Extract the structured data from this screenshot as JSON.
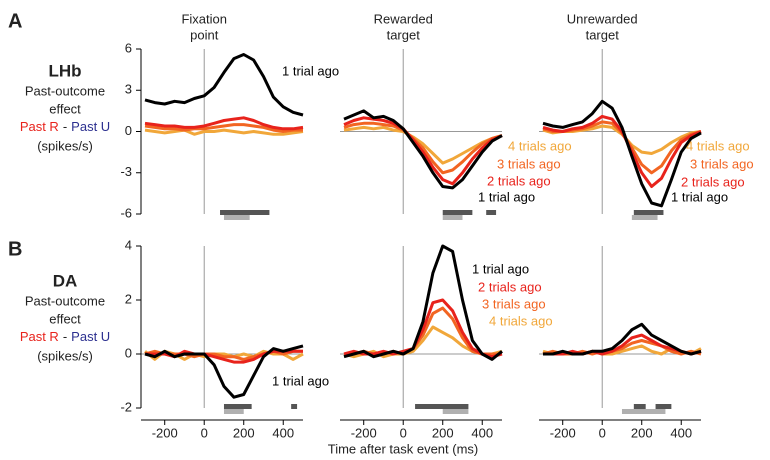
{
  "figure": {
    "xlabel": "Time after task event (ms)",
    "rows": [
      {
        "panel": "A",
        "name": "LHb",
        "lines": [
          "Past-outcome",
          "effect"
        ],
        "past_r": "Past R",
        "dash": "-",
        "past_u": "Past U",
        "units": "(spikes/s)"
      },
      {
        "panel": "B",
        "name": "DA",
        "lines": [
          "Past-outcome",
          "effect"
        ],
        "past_r": "Past R",
        "dash": "-",
        "past_u": "Past U",
        "units": "(spikes/s)"
      }
    ]
  },
  "chart_data": [
    {
      "type": "line",
      "title": [
        "Fixation",
        "point"
      ],
      "zero_line": false,
      "x": [
        -300,
        -250,
        -200,
        -150,
        -100,
        -50,
        0,
        50,
        100,
        150,
        200,
        250,
        300,
        350,
        400,
        450,
        500
      ],
      "xlim": [
        -320,
        500
      ],
      "ylim": [
        -6,
        6
      ],
      "yticks": [
        -6,
        -3,
        0,
        3,
        6
      ],
      "series": [
        {
          "color": "#000000",
          "values": [
            2.3,
            2.1,
            2.0,
            2.2,
            2.1,
            2.4,
            2.6,
            3.2,
            4.3,
            5.3,
            5.6,
            5.2,
            4.0,
            2.5,
            1.8,
            1.4,
            1.2
          ]
        },
        {
          "color": "#e8231c",
          "values": [
            0.6,
            0.5,
            0.4,
            0.4,
            0.3,
            0.3,
            0.4,
            0.6,
            0.8,
            0.9,
            1.0,
            0.8,
            0.5,
            0.3,
            0.2,
            0.2,
            0.3
          ]
        },
        {
          "color": "#f26522",
          "values": [
            0.4,
            0.3,
            0.2,
            0.2,
            0.1,
            0.2,
            0.2,
            0.3,
            0.4,
            0.5,
            0.5,
            0.4,
            0.3,
            0.1,
            0.0,
            0.1,
            0.1
          ]
        },
        {
          "color": "#f1a73a",
          "values": [
            0.1,
            0.0,
            -0.1,
            0.0,
            0.1,
            -0.2,
            0.0,
            0.0,
            0.1,
            0.0,
            -0.1,
            0.0,
            -0.1,
            -0.2,
            -0.2,
            -0.1,
            0.0
          ]
        }
      ],
      "annotations": [
        {
          "text": "1 trial ago",
          "color": "#000000"
        }
      ],
      "sig_bars": [
        {
          "x": [
            80,
            330
          ],
          "color": "#555555"
        },
        {
          "x": [
            100,
            230
          ],
          "color": "#b0b0b0"
        }
      ]
    },
    {
      "type": "line",
      "title": [
        "Rewarded",
        "target"
      ],
      "zero_line": true,
      "x": [
        -300,
        -250,
        -200,
        -150,
        -100,
        -50,
        0,
        50,
        100,
        150,
        200,
        250,
        300,
        350,
        400,
        450,
        500
      ],
      "xlim": [
        -320,
        500
      ],
      "ylim": [
        -6,
        6
      ],
      "series": [
        {
          "color": "#000000",
          "values": [
            0.9,
            1.2,
            1.5,
            1.0,
            1.1,
            0.8,
            0.2,
            -0.8,
            -1.8,
            -3.0,
            -4.0,
            -4.1,
            -3.5,
            -2.5,
            -1.5,
            -0.7,
            -0.3
          ]
        },
        {
          "color": "#e8231c",
          "values": [
            0.5,
            0.8,
            1.0,
            0.9,
            0.8,
            0.6,
            0.2,
            -0.6,
            -1.5,
            -2.6,
            -3.5,
            -3.8,
            -3.0,
            -2.0,
            -1.2,
            -0.6,
            -0.3
          ]
        },
        {
          "color": "#f26522",
          "values": [
            0.3,
            0.5,
            0.6,
            0.6,
            0.5,
            0.4,
            0.1,
            -0.5,
            -1.2,
            -2.2,
            -3.0,
            -2.8,
            -2.2,
            -1.5,
            -0.9,
            -0.5,
            -0.3
          ]
        },
        {
          "color": "#f1a73a",
          "values": [
            0.1,
            0.2,
            0.3,
            0.2,
            0.3,
            0.1,
            0.0,
            -0.4,
            -0.9,
            -1.6,
            -2.3,
            -2.0,
            -1.6,
            -1.2,
            -0.8,
            -0.5,
            -0.3
          ]
        }
      ],
      "annotations": [
        {
          "text": "4 trials ago",
          "color": "#f1a73a"
        },
        {
          "text": "3 trials ago",
          "color": "#f26522"
        },
        {
          "text": "2 trials ago",
          "color": "#e8231c"
        },
        {
          "text": "1 trial ago",
          "color": "#000000"
        }
      ],
      "sig_bars": [
        {
          "x": [
            200,
            350
          ],
          "color": "#555555"
        },
        {
          "x": [
            200,
            300
          ],
          "color": "#b0b0b0"
        },
        {
          "x": [
            420,
            470
          ],
          "color": "#555555"
        }
      ]
    },
    {
      "type": "line",
      "title": [
        "Unrewarded",
        "target"
      ],
      "zero_line": true,
      "x": [
        -300,
        -250,
        -200,
        -150,
        -100,
        -50,
        0,
        50,
        100,
        150,
        200,
        250,
        300,
        350,
        400,
        450,
        500
      ],
      "xlim": [
        -320,
        500
      ],
      "ylim": [
        -6,
        6
      ],
      "series": [
        {
          "color": "#000000",
          "values": [
            0.6,
            0.4,
            0.3,
            0.5,
            0.7,
            1.3,
            2.2,
            1.7,
            0.3,
            -1.8,
            -3.8,
            -5.2,
            -5.4,
            -3.5,
            -1.5,
            -0.5,
            -0.1
          ]
        },
        {
          "color": "#e8231c",
          "values": [
            0.3,
            0.1,
            0.0,
            0.2,
            0.3,
            0.6,
            1.1,
            0.9,
            0.0,
            -1.5,
            -3.0,
            -4.0,
            -3.4,
            -2.0,
            -0.8,
            -0.3,
            0.0
          ]
        },
        {
          "color": "#f26522",
          "values": [
            0.2,
            0.0,
            0.0,
            0.1,
            0.2,
            0.4,
            0.7,
            0.6,
            -0.1,
            -1.2,
            -2.4,
            -3.0,
            -2.5,
            -1.4,
            -0.6,
            -0.2,
            0.0
          ]
        },
        {
          "color": "#f1a73a",
          "values": [
            0.1,
            -0.1,
            0.0,
            0.0,
            0.1,
            0.2,
            0.4,
            0.3,
            -0.2,
            -1.0,
            -1.5,
            -1.6,
            -1.3,
            -0.8,
            -0.4,
            -0.1,
            0.0
          ]
        }
      ],
      "annotations": [
        {
          "text": "4 trials ago",
          "color": "#f1a73a"
        },
        {
          "text": "3 trials ago",
          "color": "#f26522"
        },
        {
          "text": "2 trials ago",
          "color": "#e8231c"
        },
        {
          "text": "1 trial ago",
          "color": "#000000"
        }
      ],
      "sig_bars": [
        {
          "x": [
            160,
            310
          ],
          "color": "#555555"
        },
        {
          "x": [
            150,
            280
          ],
          "color": "#b0b0b0"
        }
      ]
    },
    {
      "type": "line",
      "zero_line": true,
      "x": [
        -300,
        -250,
        -200,
        -150,
        -100,
        -50,
        0,
        50,
        100,
        150,
        200,
        250,
        300,
        350,
        400,
        450,
        500
      ],
      "xlim": [
        -320,
        500
      ],
      "xticks": [
        -200,
        0,
        200,
        400
      ],
      "ylim": [
        -2,
        4
      ],
      "yticks": [
        -2,
        0,
        2,
        4
      ],
      "series": [
        {
          "color": "#000000",
          "values": [
            0.0,
            -0.1,
            0.1,
            -0.1,
            0.0,
            0.0,
            0.0,
            -0.4,
            -1.2,
            -1.6,
            -1.5,
            -0.8,
            -0.1,
            0.2,
            0.1,
            0.2,
            0.3
          ]
        },
        {
          "color": "#e8231c",
          "values": [
            0.0,
            0.0,
            0.0,
            -0.1,
            0.1,
            0.0,
            0.0,
            -0.1,
            -0.2,
            -0.3,
            -0.3,
            -0.2,
            0.0,
            0.1,
            0.1,
            0.1,
            0.1
          ]
        },
        {
          "color": "#f26522",
          "values": [
            0.0,
            0.1,
            0.0,
            0.0,
            0.0,
            -0.1,
            0.0,
            0.0,
            -0.1,
            -0.1,
            -0.2,
            -0.1,
            0.0,
            0.1,
            0.0,
            0.1,
            0.1
          ]
        },
        {
          "color": "#f1a73a",
          "values": [
            0.1,
            -0.2,
            0.1,
            0.0,
            -0.2,
            0.0,
            -0.1,
            0.0,
            0.0,
            -0.1,
            0.0,
            -0.1,
            0.1,
            0.0,
            0.0,
            -0.2,
            0.0
          ]
        }
      ],
      "annotations": [
        {
          "text": "1 trial ago",
          "color": "#000000"
        }
      ],
      "sig_bars": [
        {
          "x": [
            100,
            240
          ],
          "color": "#555555"
        },
        {
          "x": [
            100,
            200
          ],
          "color": "#b0b0b0"
        },
        {
          "x": [
            440,
            470
          ],
          "color": "#555555"
        }
      ]
    },
    {
      "type": "line",
      "zero_line": true,
      "x": [
        -300,
        -250,
        -200,
        -150,
        -100,
        -50,
        0,
        50,
        100,
        150,
        200,
        250,
        300,
        350,
        400,
        450,
        500
      ],
      "xlim": [
        -320,
        500
      ],
      "xticks": [
        -200,
        0,
        200,
        400
      ],
      "ylim": [
        -2,
        4
      ],
      "series": [
        {
          "color": "#000000",
          "values": [
            -0.1,
            0.0,
            0.1,
            -0.1,
            0.0,
            0.1,
            0.0,
            0.2,
            1.2,
            3.0,
            4.0,
            3.8,
            2.0,
            0.5,
            0.0,
            -0.2,
            0.1
          ]
        },
        {
          "color": "#e8231c",
          "values": [
            0.0,
            0.1,
            0.0,
            0.0,
            0.1,
            0.0,
            0.1,
            0.2,
            0.9,
            1.9,
            2.0,
            1.6,
            0.8,
            0.2,
            0.0,
            -0.1,
            0.0
          ]
        },
        {
          "color": "#f26522",
          "values": [
            0.0,
            0.0,
            0.1,
            0.0,
            0.0,
            0.1,
            0.0,
            0.2,
            0.7,
            1.5,
            1.7,
            1.3,
            0.6,
            0.1,
            0.0,
            0.0,
            0.0
          ]
        },
        {
          "color": "#f1a73a",
          "values": [
            0.0,
            -0.1,
            0.0,
            0.1,
            -0.1,
            0.0,
            0.0,
            0.1,
            0.5,
            1.0,
            0.8,
            0.6,
            0.3,
            0.1,
            0.0,
            0.0,
            0.1
          ]
        }
      ],
      "annotations": [
        {
          "text": "1 trial ago",
          "color": "#000000"
        },
        {
          "text": "2 trials ago",
          "color": "#e8231c"
        },
        {
          "text": "3 trials ago",
          "color": "#f26522"
        },
        {
          "text": "4 trials ago",
          "color": "#f1a73a"
        }
      ],
      "sig_bars": [
        {
          "x": [
            60,
            330
          ],
          "color": "#555555"
        },
        {
          "x": [
            200,
            330
          ],
          "color": "#b0b0b0"
        }
      ]
    },
    {
      "type": "line",
      "zero_line": true,
      "x": [
        -300,
        -250,
        -200,
        -150,
        -100,
        -50,
        0,
        50,
        100,
        150,
        200,
        250,
        300,
        350,
        400,
        450,
        500
      ],
      "xlim": [
        -320,
        500
      ],
      "xticks": [
        -200,
        0,
        200,
        400
      ],
      "ylim": [
        -2,
        4
      ],
      "series": [
        {
          "color": "#000000",
          "values": [
            0.0,
            0.0,
            0.1,
            0.0,
            0.0,
            0.1,
            0.1,
            0.2,
            0.5,
            0.9,
            1.1,
            0.7,
            0.5,
            0.3,
            0.1,
            0.0,
            0.1
          ]
        },
        {
          "color": "#e8231c",
          "values": [
            0.0,
            0.0,
            0.0,
            0.1,
            0.0,
            0.1,
            0.0,
            0.1,
            0.3,
            0.6,
            0.7,
            0.5,
            0.3,
            0.2,
            0.1,
            0.0,
            0.1
          ]
        },
        {
          "color": "#f26522",
          "values": [
            0.0,
            0.1,
            0.0,
            0.0,
            0.1,
            0.0,
            0.1,
            0.1,
            0.2,
            0.4,
            0.5,
            0.4,
            0.3,
            0.1,
            0.0,
            0.1,
            0.0
          ]
        },
        {
          "color": "#f1a73a",
          "values": [
            0.1,
            0.0,
            0.0,
            0.0,
            0.0,
            0.1,
            0.0,
            0.0,
            0.1,
            0.2,
            0.3,
            0.1,
            0.0,
            0.2,
            0.1,
            0.0,
            0.2
          ]
        }
      ],
      "sig_bars": [
        {
          "x": [
            160,
            220
          ],
          "color": "#555555"
        },
        {
          "x": [
            270,
            350
          ],
          "color": "#555555"
        },
        {
          "x": [
            100,
            320
          ],
          "color": "#b0b0b0"
        }
      ]
    }
  ]
}
